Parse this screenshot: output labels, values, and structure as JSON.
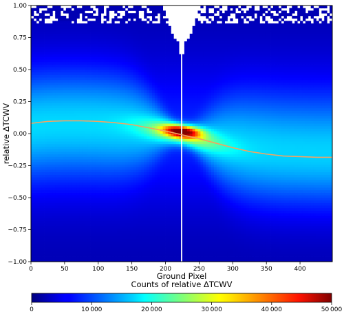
{
  "chart_data": {
    "type": "heatmap",
    "xlabel": "Ground Pixel",
    "ylabel": "relative ΔTCWV",
    "xlim": [
      0,
      448
    ],
    "ylim": [
      -1.0,
      1.0
    ],
    "x_ticks": [
      0,
      50,
      100,
      150,
      200,
      250,
      300,
      350,
      400
    ],
    "x_tick_labels": [
      "0",
      "50",
      "100",
      "150",
      "200",
      "250",
      "300",
      "350",
      "400"
    ],
    "y_ticks": [
      -1.0,
      -0.75,
      -0.5,
      -0.25,
      0.0,
      0.25,
      0.5,
      0.75,
      1.0
    ],
    "y_tick_labels": [
      "−1.00",
      "−0.75",
      "−0.50",
      "−0.25",
      "0.00",
      "0.25",
      "0.50",
      "0.75",
      "1.00"
    ],
    "colorbar": {
      "label": "Counts of relative ΔTCWV",
      "min": 0,
      "max": 50000,
      "ticks": [
        0,
        10000,
        20000,
        30000,
        40000,
        50000
      ],
      "tick_labels": [
        "0",
        "10 000",
        "20 000",
        "30 000",
        "40 000",
        "50 000"
      ],
      "colormap": "jet"
    },
    "density": {
      "peak_x": 225,
      "peak_y": 0.02,
      "peak_count": 50000,
      "gap_x": 224
    },
    "series": [
      {
        "type": "line",
        "color": "#f4a460",
        "x": [
          0,
          25,
          50,
          75,
          100,
          125,
          150,
          175,
          200,
          225,
          250,
          275,
          300,
          325,
          350,
          375,
          400,
          425,
          448
        ],
        "y": [
          0.08,
          0.095,
          0.1,
          0.1,
          0.095,
          0.085,
          0.07,
          0.045,
          0.02,
          -0.01,
          -0.04,
          -0.075,
          -0.11,
          -0.14,
          -0.16,
          -0.175,
          -0.18,
          -0.185,
          -0.185
        ]
      }
    ],
    "grid": false
  }
}
